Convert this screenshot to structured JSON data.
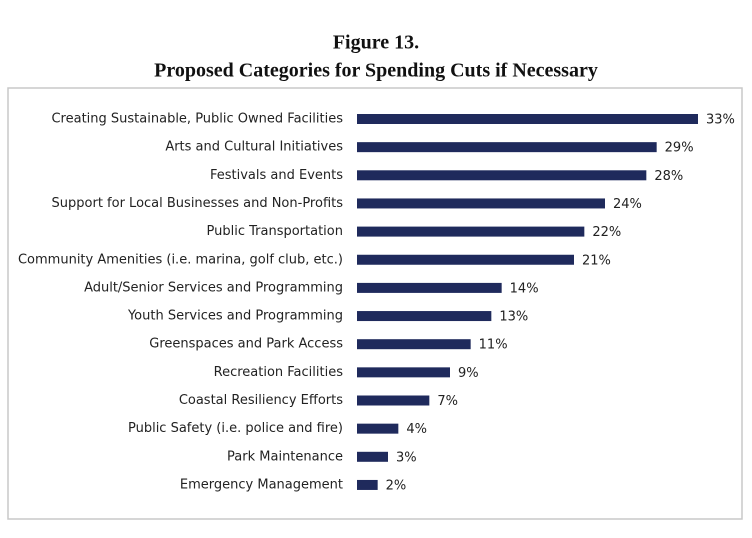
{
  "chart_data": {
    "type": "bar",
    "orientation": "horizontal",
    "title": "Figure 13.",
    "subtitle": "Proposed Categories for Spending Cuts if Necessary",
    "categories": [
      "Creating Sustainable, Public Owned Facilities",
      "Arts and Cultural Initiatives",
      "Festivals and Events",
      "Support for Local Businesses and Non-Profits",
      "Public Transportation",
      "Community Amenities (i.e. marina, golf club, etc.)",
      "Adult/Senior Services and Programming",
      "Youth Services and Programming",
      "Greenspaces and Park Access",
      "Recreation Facilities",
      "Coastal Resiliency Efforts",
      "Public Safety (i.e. police and fire)",
      "Park Maintenance",
      "Emergency Management"
    ],
    "values": [
      33,
      29,
      28,
      24,
      22,
      21,
      14,
      13,
      11,
      9,
      7,
      4,
      3,
      2
    ],
    "value_labels": [
      "33%",
      "29%",
      "28%",
      "24%",
      "22%",
      "21%",
      "14%",
      "13%",
      "11%",
      "9%",
      "7%",
      "4%",
      "3%",
      "2%"
    ],
    "color": "#1f2a5c"
  }
}
